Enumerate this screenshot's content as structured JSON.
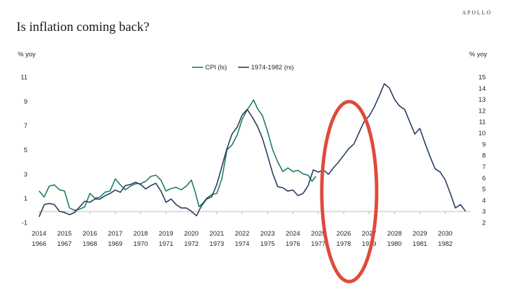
{
  "brand": "APOLLO",
  "colors": {
    "cpi": "#1b7a5e",
    "seventies": "#243a5e",
    "highlight": "#e04a3a",
    "axis": "#bbbbbb"
  },
  "chart_data": {
    "type": "line",
    "title": "Is inflation coming back?",
    "ylabel_left": "% yoy",
    "ylabel_right": "% yoy",
    "legend_position": "top-center",
    "ylim_left": [
      -1,
      11
    ],
    "ylim_right": [
      2,
      15
    ],
    "yticks_left": [
      -1,
      1,
      3,
      5,
      7,
      9,
      11
    ],
    "yticks_right": [
      2,
      3,
      4,
      5,
      6,
      7,
      8,
      9,
      10,
      11,
      12,
      13,
      14,
      15
    ],
    "x_ticks_top": [
      "2014",
      "2015",
      "2016",
      "2017",
      "2018",
      "2019",
      "2020",
      "2021",
      "2022",
      "2023",
      "2024",
      "2025",
      "2026",
      "2027",
      "2028",
      "2029",
      "2030"
    ],
    "x_ticks_bottom": [
      "1966",
      "1967",
      "1968",
      "1969",
      "1970",
      "1971",
      "1972",
      "1973",
      "1974",
      "1975",
      "1976",
      "1977",
      "1978",
      "1979",
      "1980",
      "1981",
      "1982"
    ],
    "series": [
      {
        "name": "CPI (ls)",
        "axis": "left",
        "x": [
          2014.0,
          2014.2,
          2014.4,
          2014.6,
          2014.8,
          2015.0,
          2015.2,
          2015.4,
          2015.6,
          2015.8,
          2016.0,
          2016.2,
          2016.4,
          2016.6,
          2016.8,
          2017.0,
          2017.2,
          2017.4,
          2017.6,
          2017.8,
          2018.0,
          2018.2,
          2018.4,
          2018.6,
          2018.8,
          2019.0,
          2019.2,
          2019.4,
          2019.6,
          2019.8,
          2020.0,
          2020.15,
          2020.3,
          2020.45,
          2020.6,
          2020.8,
          2021.0,
          2021.2,
          2021.4,
          2021.6,
          2021.8,
          2022.0,
          2022.2,
          2022.45,
          2022.6,
          2022.8,
          2023.0,
          2023.2,
          2023.4,
          2023.6,
          2023.8,
          2024.0,
          2024.2,
          2024.4,
          2024.6,
          2024.75,
          2024.9
        ],
        "values": [
          1.6,
          1.1,
          2.0,
          2.1,
          1.7,
          1.6,
          0.2,
          0.0,
          0.1,
          0.3,
          1.4,
          1.0,
          1.1,
          1.5,
          1.6,
          2.6,
          2.1,
          1.7,
          2.0,
          2.2,
          2.2,
          2.4,
          2.8,
          2.9,
          2.5,
          1.6,
          1.8,
          1.9,
          1.7,
          2.0,
          2.5,
          1.5,
          0.3,
          0.6,
          1.0,
          1.3,
          1.4,
          2.6,
          5.0,
          5.4,
          6.2,
          7.5,
          8.3,
          9.1,
          8.4,
          7.8,
          6.5,
          5.0,
          4.0,
          3.2,
          3.5,
          3.2,
          3.3,
          3.0,
          2.9,
          2.4,
          2.8
        ]
      },
      {
        "name": "1974-1982 (rs)",
        "axis": "right",
        "x": [
          2014.0,
          2014.2,
          2014.4,
          2014.6,
          2014.8,
          2015.0,
          2015.2,
          2015.4,
          2015.6,
          2015.8,
          2016.0,
          2016.2,
          2016.4,
          2016.6,
          2016.8,
          2017.0,
          2017.2,
          2017.4,
          2017.6,
          2017.8,
          2018.0,
          2018.2,
          2018.4,
          2018.6,
          2018.8,
          2019.0,
          2019.2,
          2019.4,
          2019.6,
          2019.8,
          2020.0,
          2020.2,
          2020.4,
          2020.6,
          2020.8,
          2021.0,
          2021.2,
          2021.4,
          2021.6,
          2021.8,
          2022.0,
          2022.2,
          2022.4,
          2022.6,
          2022.8,
          2023.0,
          2023.2,
          2023.4,
          2023.6,
          2023.8,
          2024.0,
          2024.2,
          2024.4,
          2024.6,
          2024.8,
          2025.0,
          2025.2,
          2025.4,
          2025.6,
          2025.8,
          2026.0,
          2026.2,
          2026.4,
          2026.6,
          2026.8,
          2027.0,
          2027.2,
          2027.4,
          2027.6,
          2027.8,
          2028.0,
          2028.2,
          2028.4,
          2028.6,
          2028.8,
          2029.0,
          2029.2,
          2029.4,
          2029.6,
          2029.8,
          2030.0,
          2030.2,
          2030.4,
          2030.6,
          2030.8
        ],
        "values": [
          2.5,
          3.6,
          3.7,
          3.6,
          3.0,
          2.9,
          2.7,
          2.9,
          3.4,
          3.9,
          3.8,
          4.1,
          4.1,
          4.4,
          4.6,
          4.9,
          4.7,
          5.3,
          5.4,
          5.6,
          5.4,
          5.0,
          5.3,
          5.5,
          4.8,
          3.8,
          4.1,
          3.6,
          3.3,
          3.3,
          3.0,
          2.6,
          3.5,
          4.1,
          4.3,
          5.4,
          7.0,
          8.6,
          9.9,
          10.5,
          11.6,
          12.1,
          11.4,
          10.6,
          9.5,
          8.0,
          6.4,
          5.2,
          5.1,
          4.8,
          4.9,
          4.4,
          4.6,
          5.3,
          6.7,
          6.5,
          6.7,
          6.3,
          6.9,
          7.4,
          8.0,
          8.6,
          9.0,
          10.0,
          11.0,
          11.5,
          12.3,
          13.3,
          14.4,
          14.0,
          13.0,
          12.4,
          12.1,
          11.0,
          9.9,
          10.4,
          9.1,
          7.9,
          6.8,
          6.5,
          5.8,
          4.6,
          3.3,
          3.6,
          3.0
        ]
      }
    ]
  }
}
